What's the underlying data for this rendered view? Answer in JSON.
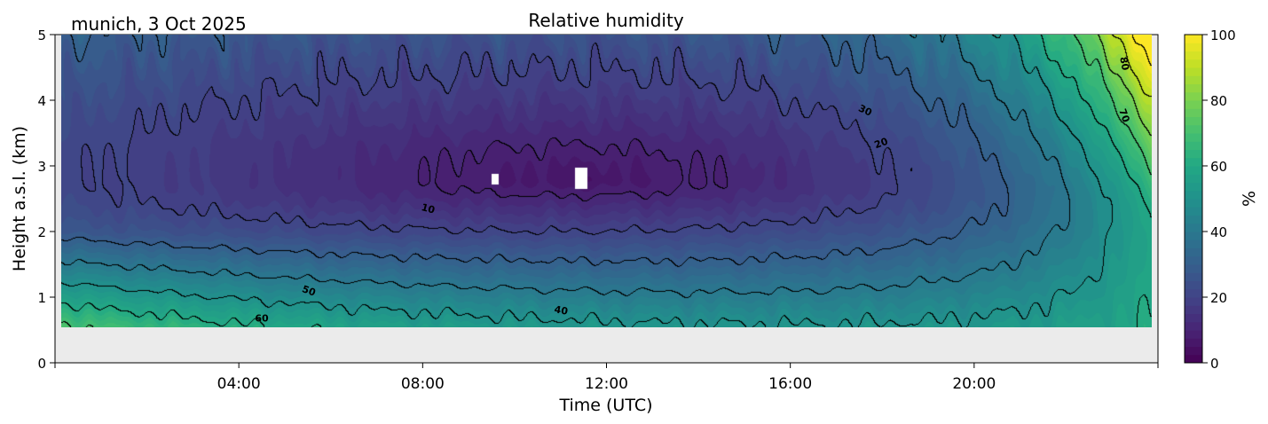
{
  "chart_data": {
    "type": "heatmap",
    "subtype": "filled contour",
    "title": "Relative humidity",
    "location_date": "munich, 3 Oct 2025",
    "xlabel": "Time (UTC)",
    "ylabel": "Height a.s.l. (km)",
    "xlim": [
      0,
      24
    ],
    "ylim": [
      0,
      5
    ],
    "x_ticks": [
      {
        "value": 4,
        "label": "04:00"
      },
      {
        "value": 8,
        "label": "08:00"
      },
      {
        "value": 12,
        "label": "12:00"
      },
      {
        "value": 16,
        "label": "16:00"
      },
      {
        "value": 20,
        "label": "20:00"
      }
    ],
    "y_ticks": [
      {
        "value": 0,
        "label": "0"
      },
      {
        "value": 1,
        "label": "1"
      },
      {
        "value": 2,
        "label": "2"
      },
      {
        "value": 3,
        "label": "3"
      },
      {
        "value": 4,
        "label": "4"
      },
      {
        "value": 5,
        "label": "5"
      }
    ],
    "data_height_range_km": [
      0.55,
      5
    ],
    "colormap": "viridis",
    "colorbar": {
      "label": "%",
      "range": [
        0,
        100
      ],
      "ticks": [
        {
          "value": 0,
          "label": "0"
        },
        {
          "value": 20,
          "label": "20"
        },
        {
          "value": 40,
          "label": "40"
        },
        {
          "value": 60,
          "label": "60"
        },
        {
          "value": 80,
          "label": "80"
        },
        {
          "value": 100,
          "label": "100"
        }
      ]
    },
    "contour_levels": [
      10,
      20,
      30,
      40,
      50,
      60,
      70,
      80
    ],
    "contour_labels": [
      {
        "text": "80",
        "time": 23.2,
        "height": 4.55
      },
      {
        "text": "70",
        "time": 23.2,
        "height": 3.75
      },
      {
        "text": "30",
        "time": 17.6,
        "height": 3.8
      },
      {
        "text": "20",
        "time": 18.0,
        "height": 3.3
      },
      {
        "text": "10",
        "time": 8.1,
        "height": 2.3
      },
      {
        "text": "50",
        "time": 5.5,
        "height": 1.05
      },
      {
        "text": "60",
        "time": 4.5,
        "height": 0.63
      },
      {
        "text": "40",
        "time": 11.0,
        "height": 0.75
      }
    ],
    "features": {
      "minimum_rh_percent": 5,
      "minimum_location": {
        "time": 11.5,
        "height": 2.8
      },
      "maximum_rh_percent": 95,
      "maximum_location": {
        "time": 23.8,
        "height": 4.6
      },
      "missing_data_gaps": [
        {
          "time": 9.6,
          "height": 2.8
        },
        {
          "time": 11.5,
          "height": 2.8
        }
      ]
    }
  }
}
